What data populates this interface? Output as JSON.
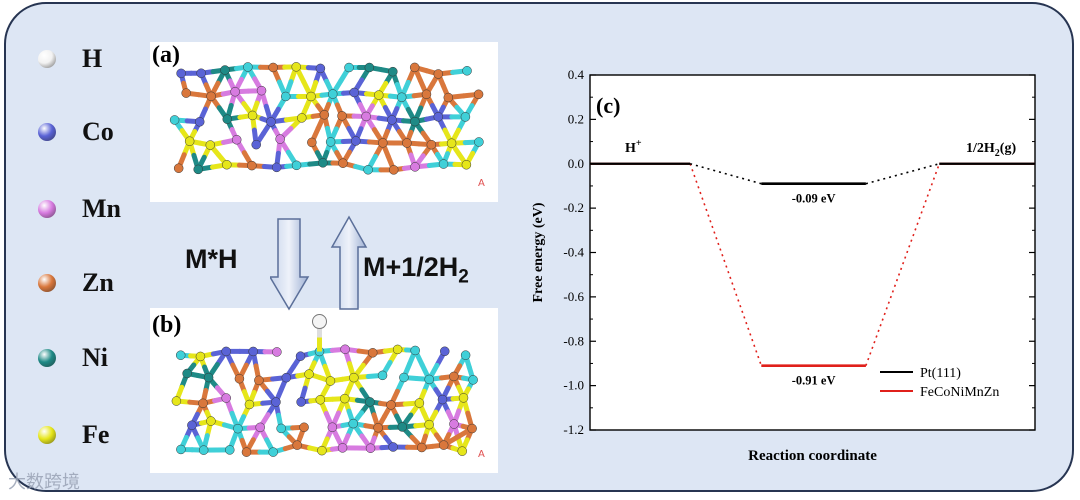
{
  "legend": [
    {
      "label": "H",
      "color": "#f2f2f2"
    },
    {
      "label": "Co",
      "color": "#5a63d6"
    },
    {
      "label": "Mn",
      "color": "#d77be0"
    },
    {
      "label": "Zn",
      "color": "#d9773c"
    },
    {
      "label": "Ni",
      "color": "#1e8a86"
    },
    {
      "label": "Fe",
      "color": "#e6e61a"
    }
  ],
  "panels": {
    "a": "(a)",
    "b": "(b)",
    "c": "(c)"
  },
  "arrows": {
    "down_label": "M*H",
    "up_label_main": "M+1/2H",
    "up_label_sub": "2"
  },
  "watermark": "大数跨境",
  "chart_data": {
    "type": "line",
    "title": "",
    "xlabel": "Reaction coordinate",
    "ylabel": "Free energy (eV)",
    "ylim": [
      -1.2,
      0.4
    ],
    "yticks": [
      "0.4",
      "0.2",
      "0.0",
      "-0.2",
      "-0.4",
      "-0.6",
      "-0.8",
      "-1.0",
      "-1.2"
    ],
    "legend_placement": "bottom-right",
    "state_labels": {
      "start": "H",
      "start_sup": "+",
      "end_main": "1/2H",
      "end_sub": "2",
      "end_tail": "(g)"
    },
    "series": [
      {
        "name": "Pt(111)",
        "color": "#000000",
        "levels": [
          0.0,
          -0.09,
          0.0
        ],
        "level_label": "-0.09 eV"
      },
      {
        "name": "FeCoNiMnZn",
        "color": "#e0201b",
        "levels": [
          0.0,
          -0.91,
          0.0
        ],
        "level_label": "-0.91 eV"
      }
    ]
  }
}
